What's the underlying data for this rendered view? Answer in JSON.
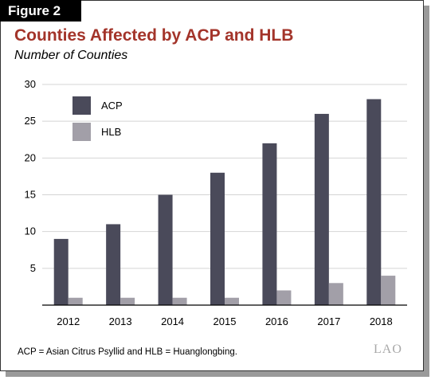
{
  "figure_label": "Figure 2",
  "title": "Counties Affected by ACP and HLB",
  "subtitle": "Number of Counties",
  "footnote": "ACP = Asian Citrus Psyllid and HLB = Huanglongbing.",
  "logo_text": "LAO",
  "colors": {
    "title": "#a3342a",
    "acp": "#4a4a5a",
    "hlb": "#a29fa8"
  },
  "chart_data": {
    "type": "bar",
    "title": "Counties Affected by ACP and HLB",
    "subtitle": "Number of Counties",
    "xlabel": "",
    "ylabel": "",
    "categories": [
      "2012",
      "2013",
      "2014",
      "2015",
      "2016",
      "2017",
      "2018"
    ],
    "series": [
      {
        "name": "ACP",
        "values": [
          9,
          11,
          15,
          18,
          22,
          26,
          28
        ],
        "color": "#4a4a5a"
      },
      {
        "name": "HLB",
        "values": [
          1,
          1,
          1,
          1,
          2,
          3,
          4
        ],
        "color": "#a29fa8"
      }
    ],
    "ylim": [
      0,
      30
    ],
    "yticks": [
      5,
      10,
      15,
      20,
      25,
      30
    ],
    "grid": true,
    "legend": "top-left"
  }
}
